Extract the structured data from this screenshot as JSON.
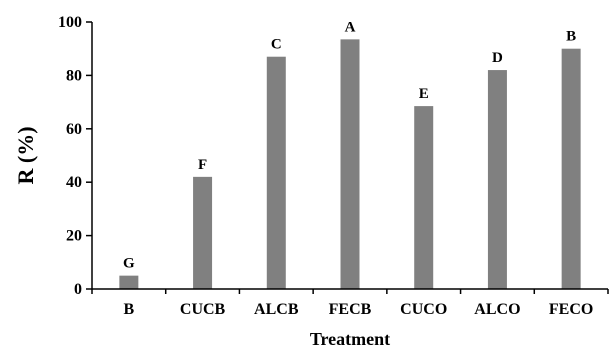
{
  "chart_data": {
    "type": "bar",
    "title": "",
    "xlabel": "Treatment",
    "ylabel": "R (%)",
    "ylim": [
      0,
      100
    ],
    "yticks": [
      0,
      20,
      40,
      60,
      80,
      100
    ],
    "grid": false,
    "categories": [
      "B",
      "CUCB",
      "ALCB",
      "FECB",
      "CUCO",
      "ALCO",
      "FECO"
    ],
    "values": [
      5,
      42,
      87,
      93.5,
      68.5,
      82,
      90
    ],
    "annotations": [
      "G",
      "F",
      "C",
      "A",
      "E",
      "D",
      "B"
    ],
    "bar_color": "#808080"
  }
}
